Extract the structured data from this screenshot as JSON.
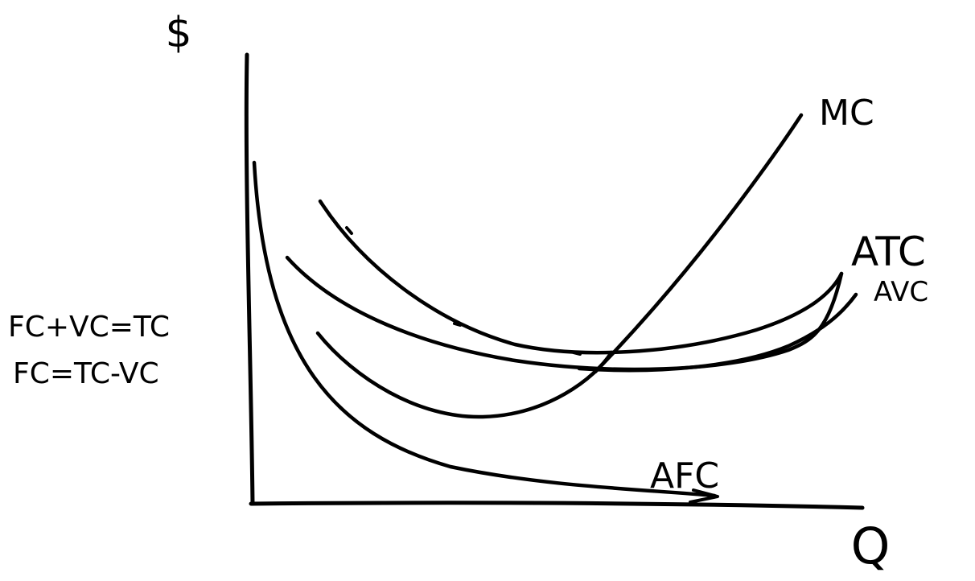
{
  "diagram": {
    "stroke_color": "#000000",
    "background": "#ffffff",
    "axes": {
      "y_label": "$",
      "x_label": "Q"
    },
    "curves": {
      "mc": "MC",
      "atc": "ATC",
      "avc": "AVC",
      "afc": "AFC"
    },
    "equations": [
      "FC+VC=TC",
      "FC=TC-VC"
    ]
  }
}
